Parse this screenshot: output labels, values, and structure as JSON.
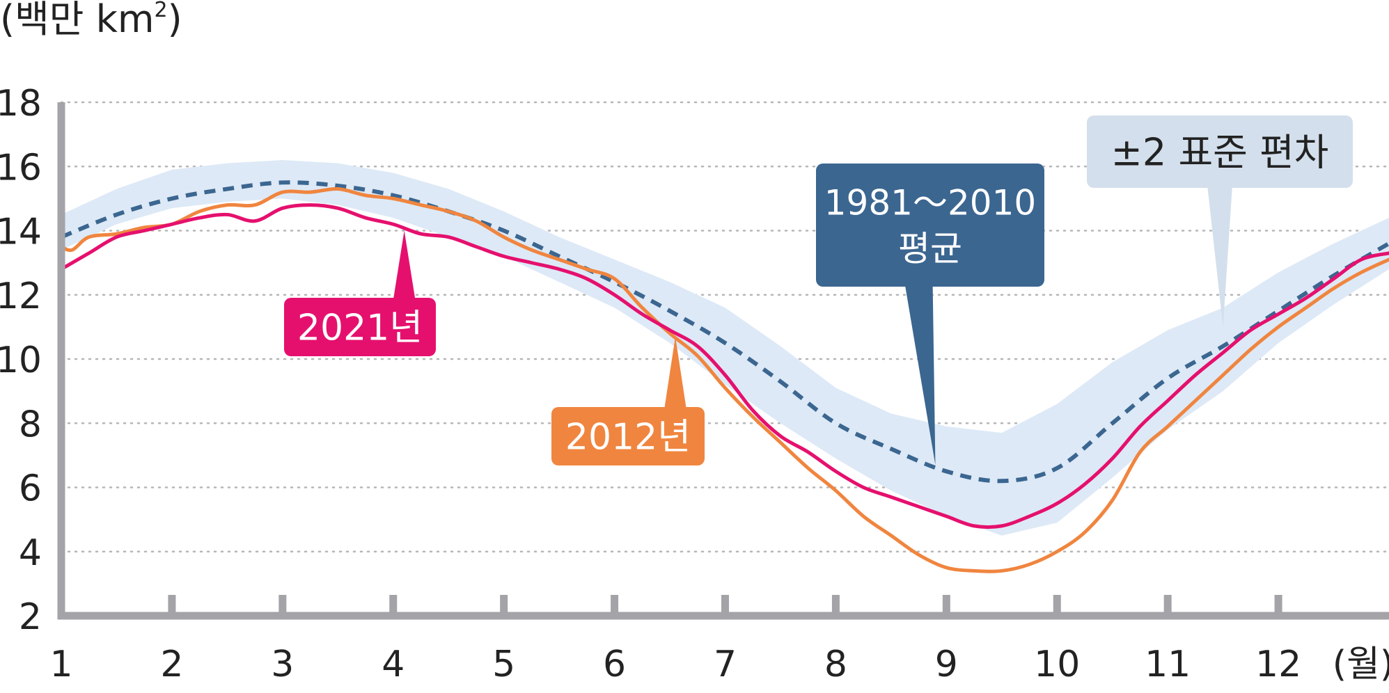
{
  "chart_data": {
    "type": "line",
    "title": "",
    "ylabel": "(백만 km",
    "ylabel_sup": "2",
    "ylabel_close": ")",
    "xlabel": "(월)",
    "ylim": [
      2,
      18
    ],
    "xlim": [
      1,
      13
    ],
    "yticks": [
      "2",
      "4",
      "6",
      "8",
      "10",
      "12",
      "14",
      "16",
      "18"
    ],
    "xticks": [
      "1",
      "2",
      "3",
      "4",
      "5",
      "6",
      "7",
      "8",
      "9",
      "10",
      "11",
      "12"
    ],
    "grid": "horizontal dotted",
    "colors": {
      "avg": "#3b6690",
      "band": "#dde9f6",
      "y2021": "#e5106e",
      "y2012": "#f0853f",
      "axis": "#a3a3a8",
      "grid": "#b5b5b5",
      "std_box": "#d3dfec"
    },
    "band": {
      "name": "±2 표준 편차",
      "x": [
        1,
        1.5,
        2,
        2.5,
        3,
        3.5,
        4,
        4.5,
        5,
        5.5,
        6,
        6.5,
        7,
        7.5,
        8,
        8.5,
        9,
        9.5,
        10,
        10.5,
        11,
        11.5,
        12,
        12.5,
        13
      ],
      "upper": [
        14.5,
        15.3,
        15.9,
        16.1,
        16.2,
        16.1,
        15.8,
        15.3,
        14.6,
        13.8,
        13.1,
        12.4,
        11.6,
        10.4,
        9.1,
        8.3,
        7.9,
        7.7,
        8.6,
        9.9,
        10.9,
        11.6,
        12.7,
        13.6,
        14.4
      ],
      "lower": [
        13.4,
        14.2,
        14.7,
        14.9,
        15.0,
        14.8,
        14.4,
        13.8,
        13.2,
        12.4,
        11.6,
        10.5,
        9.2,
        8.0,
        6.9,
        5.9,
        5.1,
        4.5,
        4.9,
        6.3,
        7.8,
        9.0,
        10.5,
        11.7,
        12.8
      ]
    },
    "series": [
      {
        "name": "1981~2010 평균",
        "style": "dashed",
        "x": [
          1,
          1.5,
          2,
          2.5,
          3,
          3.5,
          4,
          4.5,
          5,
          5.5,
          6,
          6.5,
          7,
          7.5,
          8,
          8.5,
          9,
          9.5,
          10,
          10.5,
          11,
          11.5,
          12,
          12.5,
          13
        ],
        "values": [
          13.8,
          14.5,
          15.0,
          15.3,
          15.5,
          15.4,
          15.1,
          14.6,
          14.0,
          13.2,
          12.4,
          11.5,
          10.5,
          9.3,
          8.0,
          7.2,
          6.5,
          6.2,
          6.6,
          8.0,
          9.4,
          10.4,
          11.5,
          12.6,
          13.6
        ]
      },
      {
        "name": "2021년",
        "style": "solid",
        "x": [
          1,
          1.25,
          1.5,
          1.75,
          2,
          2.25,
          2.5,
          2.75,
          3,
          3.25,
          3.5,
          3.75,
          4,
          4.25,
          4.5,
          4.75,
          5,
          5.25,
          5.5,
          5.75,
          6,
          6.25,
          6.5,
          6.75,
          7,
          7.25,
          7.5,
          7.75,
          8,
          8.25,
          8.5,
          8.75,
          9,
          9.25,
          9.5,
          9.75,
          10,
          10.25,
          10.5,
          10.75,
          11,
          11.25,
          11.5,
          11.75,
          12,
          12.25,
          12.5,
          12.75,
          13
        ],
        "values": [
          12.8,
          13.3,
          13.8,
          14.0,
          14.2,
          14.4,
          14.5,
          14.3,
          14.7,
          14.8,
          14.7,
          14.4,
          14.2,
          13.9,
          13.8,
          13.5,
          13.2,
          13.0,
          12.8,
          12.5,
          12.0,
          11.4,
          10.9,
          10.4,
          9.5,
          8.4,
          7.6,
          7.1,
          6.5,
          6.0,
          5.7,
          5.4,
          5.1,
          4.8,
          4.8,
          5.1,
          5.5,
          6.1,
          6.9,
          7.9,
          8.7,
          9.5,
          10.2,
          10.9,
          11.4,
          11.9,
          12.5,
          13.1,
          13.3
        ]
      },
      {
        "name": "2012년",
        "style": "solid",
        "x": [
          1,
          1.1,
          1.25,
          1.5,
          1.75,
          2,
          2.25,
          2.5,
          2.75,
          3,
          3.25,
          3.5,
          3.75,
          4,
          4.25,
          4.5,
          4.75,
          5,
          5.25,
          5.5,
          5.75,
          6,
          6.25,
          6.5,
          6.75,
          7,
          7.25,
          7.5,
          7.75,
          8,
          8.25,
          8.5,
          8.75,
          9,
          9.25,
          9.5,
          9.75,
          10,
          10.25,
          10.5,
          10.75,
          11,
          11.25,
          11.5,
          11.75,
          12,
          12.25,
          12.5,
          12.75,
          13
        ],
        "values": [
          13.5,
          13.4,
          13.8,
          13.9,
          14.1,
          14.2,
          14.6,
          14.8,
          14.8,
          15.2,
          15.2,
          15.3,
          15.1,
          15.0,
          14.8,
          14.6,
          14.3,
          13.8,
          13.4,
          13.1,
          12.8,
          12.5,
          11.6,
          10.8,
          10.1,
          9.1,
          8.2,
          7.4,
          6.6,
          5.9,
          5.1,
          4.5,
          3.9,
          3.5,
          3.4,
          3.4,
          3.6,
          4.0,
          4.6,
          5.6,
          7.1,
          7.9,
          8.7,
          9.5,
          10.3,
          11.0,
          11.6,
          12.2,
          12.7,
          13.1
        ]
      }
    ],
    "annotations": [
      {
        "text": "2021년",
        "color": "#e5106e",
        "points_to_x": 4.1,
        "points_to_y": 14.0
      },
      {
        "text": "2012년",
        "color": "#f0853f",
        "points_to_x": 6.55,
        "points_to_y": 10.7
      },
      {
        "text": "1981～2010",
        "text2": "평균",
        "color": "#3b6690",
        "points_to_x": 8.9,
        "points_to_y": 6.7
      },
      {
        "text": "±2 표준 편차",
        "color": "#d3dfec",
        "text_color": "#222222",
        "points_to_x": 11.5,
        "points_to_y": 11.0
      }
    ]
  }
}
